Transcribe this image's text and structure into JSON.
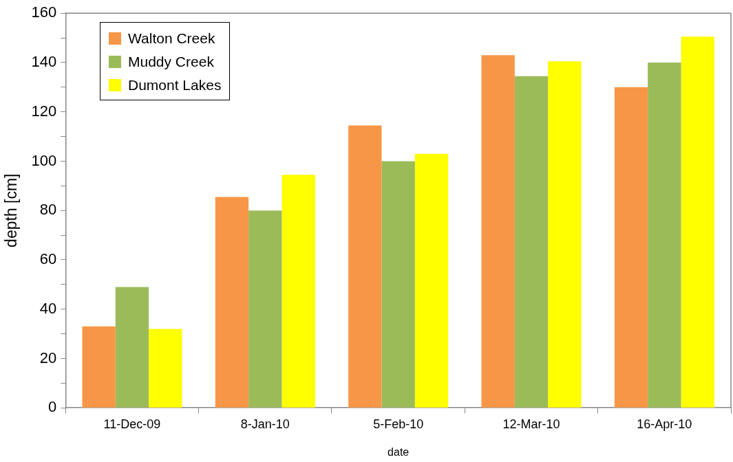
{
  "chart_data": {
    "type": "bar",
    "xlabel": "date",
    "ylabel": "depth [cm]",
    "categories": [
      "11-Dec-09",
      "8-Jan-10",
      "5-Feb-10",
      "12-Mar-10",
      "16-Apr-10"
    ],
    "series": [
      {
        "name": "Walton Creek",
        "color": "#f79646",
        "values": [
          33,
          85.5,
          114.5,
          143,
          130
        ]
      },
      {
        "name": "Muddy Creek",
        "color": "#9bbb59",
        "values": [
          49,
          80,
          100,
          134.5,
          140
        ]
      },
      {
        "name": "Dumont Lakes",
        "color": "#ffff00",
        "values": [
          32,
          94.5,
          103,
          140.5,
          150.5
        ]
      }
    ],
    "ylim": [
      0,
      160
    ],
    "yticks": [
      0,
      {
        "value": 10,
        "label": null
      },
      20,
      {
        "value": 30,
        "label": null
      },
      40,
      {
        "value": 50,
        "label": null
      },
      60,
      {
        "value": 70,
        "label": null
      },
      80,
      {
        "value": 90,
        "label": null
      },
      100,
      {
        "value": 110,
        "label": null
      },
      120,
      {
        "value": 130,
        "label": null
      },
      140,
      {
        "value": 150,
        "label": null
      },
      160
    ],
    "grid": false,
    "legend": "top left"
  }
}
